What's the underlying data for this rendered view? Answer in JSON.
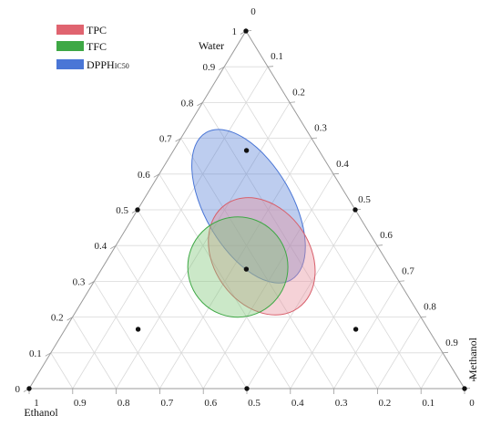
{
  "chart_data": {
    "type": "scatter",
    "subtype": "ternary",
    "axes": {
      "water": {
        "label": "Water",
        "ticks": [
          "0",
          "0.1",
          "0.2",
          "0.3",
          "0.4",
          "0.5",
          "0.6",
          "0.7",
          "0.8",
          "0.9",
          "1"
        ]
      },
      "methanol": {
        "label": "Methanol",
        "ticks": [
          "0",
          "0.1",
          "0.2",
          "0.3",
          "0.4",
          "0.5",
          "0.6",
          "0.7",
          "0.8",
          "0.9",
          "1"
        ]
      },
      "ethanol": {
        "label": "Ethanol",
        "ticks": [
          "1",
          "0.9",
          "0.8",
          "0.7",
          "0.6",
          "0.5",
          "0.4",
          "0.3",
          "0.2",
          "0.1",
          "0"
        ]
      }
    },
    "grid": true,
    "legend_position": "top-left",
    "legend": [
      {
        "main": "TPC",
        "sub": "",
        "color": "#e06470"
      },
      {
        "main": "TFC",
        "sub": "",
        "color": "#3ea845"
      },
      {
        "main": "DPPH",
        "sub": "IC50",
        "color": "#4a76d6"
      }
    ],
    "design_points": [
      {
        "water": 1,
        "methanol": 0,
        "ethanol": 0
      },
      {
        "water": 0,
        "methanol": 1,
        "ethanol": 0
      },
      {
        "water": 0,
        "methanol": 0,
        "ethanol": 1
      },
      {
        "water": 0.5,
        "methanol": 0.5,
        "ethanol": 0
      },
      {
        "water": 0.5,
        "methanol": 0,
        "ethanol": 0.5
      },
      {
        "water": 0,
        "methanol": 0.5,
        "ethanol": 0.5
      },
      {
        "water": 0.667,
        "methanol": 0.167,
        "ethanol": 0.167
      },
      {
        "water": 0.167,
        "methanol": 0.667,
        "ethanol": 0.167
      },
      {
        "water": 0.167,
        "methanol": 0.167,
        "ethanol": 0.667
      },
      {
        "water": 0.333,
        "methanol": 0.333,
        "ethanol": 0.333
      }
    ],
    "optimal_regions": [
      {
        "name": "DPPHIC50",
        "center": {
          "water": 0.51,
          "methanol": 0.25,
          "ethanol": 0.24
        },
        "rx": 0.1,
        "ry": 0.195,
        "rotation_deg": -30,
        "fill": "#5b82d8",
        "stroke": "#4a76d6"
      },
      {
        "name": "TPC",
        "center": {
          "water": 0.37,
          "methanol": 0.35,
          "ethanol": 0.28
        },
        "rx": 0.11,
        "ry": 0.145,
        "rotation_deg": -35,
        "fill": "#e58f9a",
        "stroke": "#d8606c"
      },
      {
        "name": "TFC",
        "center": {
          "water": 0.34,
          "methanol": 0.31,
          "ethanol": 0.35
        },
        "rx": 0.115,
        "ry": 0.115,
        "rotation_deg": 0,
        "fill": "#7cc576",
        "stroke": "#3ea845"
      }
    ]
  }
}
